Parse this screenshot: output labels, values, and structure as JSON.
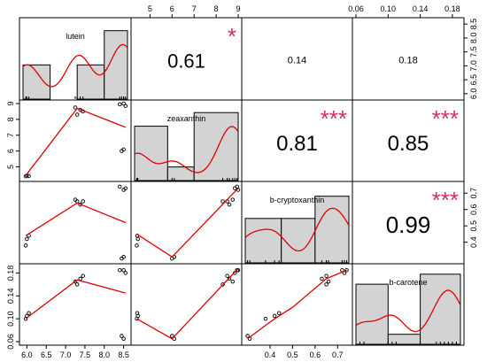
{
  "chart_data": {
    "type": "scatter-matrix",
    "variables": [
      "lutein",
      "zeaxanthin",
      "b-cryptoxanthin",
      "b-carotene"
    ],
    "ranges": [
      [
        5.9,
        8.6
      ],
      [
        4.3,
        9.0
      ],
      [
        0.29,
        0.75
      ],
      [
        0.06,
        0.19
      ]
    ],
    "ticks": [
      [
        6.0,
        6.5,
        7.0,
        7.5,
        8.0,
        8.5
      ],
      [
        5,
        6,
        7,
        8,
        9
      ],
      [
        0.4,
        0.5,
        0.6,
        0.7
      ],
      [
        0.06,
        0.1,
        0.14,
        0.18
      ]
    ],
    "tick_labels": [
      [
        "6.0",
        "6.5",
        "7.0",
        "7.5",
        "8.0",
        "8.5"
      ],
      [
        "5",
        "6",
        "7",
        "8",
        "9"
      ],
      [
        "0.4",
        "0.5",
        "0.6",
        "0.7"
      ],
      [
        "0.06",
        "0.10",
        "0.14",
        "0.18"
      ]
    ],
    "observations": [
      [
        5.97,
        4.4,
        0.38,
        0.1
      ],
      [
        6.0,
        4.45,
        0.42,
        0.105
      ],
      [
        6.05,
        4.42,
        0.44,
        0.11
      ],
      [
        7.25,
        8.75,
        0.66,
        0.165
      ],
      [
        7.3,
        8.3,
        0.65,
        0.16
      ],
      [
        7.38,
        8.6,
        0.63,
        0.17
      ],
      [
        7.45,
        8.5,
        0.65,
        0.175
      ],
      [
        8.4,
        8.95,
        0.74,
        0.185
      ],
      [
        8.45,
        6.0,
        0.3,
        0.07
      ],
      [
        8.5,
        6.1,
        0.31,
        0.065
      ],
      [
        8.55,
        8.85,
        0.73,
        0.18
      ],
      [
        8.5,
        9.0,
        0.72,
        0.185
      ]
    ],
    "histograms": [
      {
        "bins": [
          5.9,
          6.6,
          7.3,
          8.0,
          8.6
        ],
        "counts": [
          2,
          0,
          2,
          4
        ],
        "ymax": 4.5
      },
      {
        "bins": [
          4.3,
          5.8,
          7.0,
          9.0
        ],
        "counts": [
          4,
          1,
          5
        ],
        "ymax": 5.6
      },
      {
        "bins": [
          0.29,
          0.45,
          0.6,
          0.75
        ],
        "counts": [
          3,
          3,
          4.5
        ],
        "ymax": 5.2
      },
      {
        "bins": [
          0.06,
          0.1,
          0.14,
          0.19
        ],
        "counts": [
          6,
          1,
          7
        ],
        "ymax": 7.6
      }
    ],
    "fit_lines": [
      {
        "row": 1,
        "col": 0,
        "x": [
          5.97,
          7.3,
          8.55
        ],
        "y": [
          4.45,
          8.7,
          7.5
        ]
      },
      {
        "row": 2,
        "col": 0,
        "x": [
          5.97,
          7.3,
          8.55
        ],
        "y": [
          0.44,
          0.64,
          0.52
        ]
      },
      {
        "row": 3,
        "col": 0,
        "x": [
          5.97,
          7.3,
          8.55
        ],
        "y": [
          0.1,
          0.168,
          0.145
        ]
      },
      {
        "row": 2,
        "col": 1,
        "x": [
          4.4,
          6.0,
          9.0
        ],
        "y": [
          0.45,
          0.31,
          0.73
        ]
      },
      {
        "row": 3,
        "col": 1,
        "x": [
          4.4,
          6.0,
          9.0
        ],
        "y": [
          0.1,
          0.065,
          0.188
        ]
      },
      {
        "row": 3,
        "col": 2,
        "x": [
          0.3,
          0.42,
          0.5,
          0.65,
          0.74
        ],
        "y": [
          0.065,
          0.1,
          0.12,
          0.17,
          0.185
        ]
      }
    ],
    "correlations": [
      {
        "row": 0,
        "col": 1,
        "value": "0.61",
        "stars": "*",
        "size": 22
      },
      {
        "row": 0,
        "col": 2,
        "value": "0.14",
        "stars": "",
        "size": 11
      },
      {
        "row": 0,
        "col": 3,
        "value": "0.18",
        "stars": "",
        "size": 11
      },
      {
        "row": 1,
        "col": 2,
        "value": "0.81",
        "stars": "***",
        "size": 24
      },
      {
        "row": 1,
        "col": 3,
        "value": "0.85",
        "stars": "***",
        "size": 24
      },
      {
        "row": 2,
        "col": 3,
        "value": "0.99",
        "stars": "***",
        "size": 26
      }
    ]
  }
}
